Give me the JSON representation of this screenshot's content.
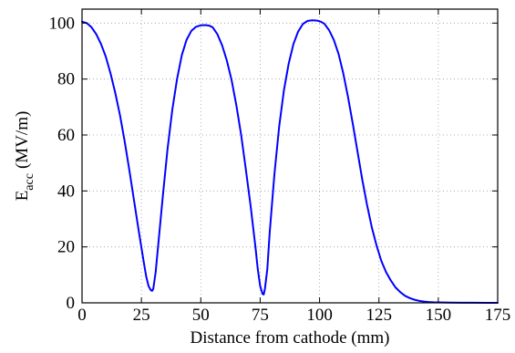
{
  "chart_data": {
    "type": "line",
    "xlabel": "Distance from cathode (mm)",
    "ylabel_main": "E",
    "ylabel_sub": "acc",
    "ylabel_units": "(MV/m)",
    "xlim": [
      0,
      175
    ],
    "ylim": [
      0,
      105
    ],
    "xticks": [
      0,
      25,
      50,
      75,
      100,
      125,
      150,
      175
    ],
    "yticks": [
      0,
      20,
      40,
      60,
      80,
      100
    ],
    "grid": true,
    "series": [
      {
        "color": "#0000ff",
        "x": [
          0,
          2,
          4,
          6,
          8,
          10,
          12,
          14,
          16,
          18,
          20,
          22,
          24,
          26,
          27,
          28,
          29,
          29.5,
          30,
          31,
          32,
          34,
          36,
          38,
          40,
          42,
          44,
          46,
          48,
          50,
          52,
          53.5,
          55,
          57,
          59,
          61,
          63,
          65,
          67,
          69,
          71,
          73,
          74,
          75,
          76,
          76.5,
          77,
          78,
          79,
          81,
          83,
          85,
          87,
          89,
          91,
          93,
          95,
          97,
          99,
          100.5,
          102,
          104,
          106,
          108,
          110,
          112,
          114,
          116,
          118,
          120,
          122,
          124,
          126,
          128,
          130,
          132,
          134,
          136,
          138,
          140,
          142,
          144,
          146,
          148,
          150,
          155,
          160,
          165,
          170,
          175
        ],
        "y": [
          100.5,
          100,
          98.5,
          96,
          92.5,
          88,
          82,
          75,
          67,
          57.5,
          47,
          36,
          25,
          14.5,
          9.5,
          6,
          4.5,
          4.3,
          5,
          11,
          20,
          38,
          55,
          69,
          80,
          88.5,
          94,
          97.2,
          98.7,
          99.2,
          99.3,
          99.1,
          98.5,
          96,
          92,
          86.5,
          79.5,
          70.5,
          60,
          47.5,
          34.5,
          20,
          12,
          6,
          3.2,
          3,
          5,
          12,
          25,
          46,
          63,
          76,
          85.5,
          92.5,
          97,
          99.7,
          100.8,
          101,
          100.9,
          100.5,
          99.8,
          97.5,
          94,
          89,
          82,
          73.5,
          64,
          54,
          44,
          35,
          27,
          20.5,
          15,
          11,
          8,
          5.5,
          3.8,
          2.5,
          1.7,
          1.1,
          0.7,
          0.45,
          0.3,
          0.2,
          0.15,
          0.08,
          0.05,
          0.03,
          0.02,
          0.01
        ]
      }
    ]
  }
}
